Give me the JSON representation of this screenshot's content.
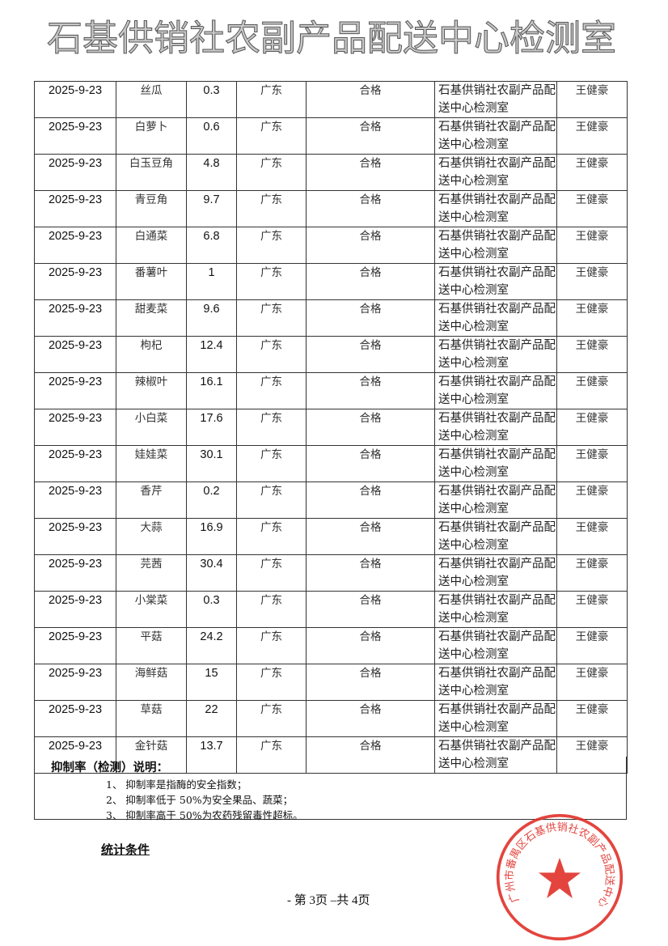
{
  "rows": [
    {
      "date": "2025-9-23",
      "name": "丝瓜",
      "rate": "0.3",
      "origin": "广东",
      "result": "合格",
      "lab": "石基供销社农副产品配送中心检测室",
      "inspector": "王健豪"
    },
    {
      "date": "2025-9-23",
      "name": "白萝卜",
      "rate": "0.6",
      "origin": "广东",
      "result": "合格",
      "lab": "石基供销社农副产品配送中心检测室",
      "inspector": "王健豪"
    },
    {
      "date": "2025-9-23",
      "name": "白玉豆角",
      "rate": "4.8",
      "origin": "广东",
      "result": "合格",
      "lab": "石基供销社农副产品配送中心检测室",
      "inspector": "王健豪"
    },
    {
      "date": "2025-9-23",
      "name": "青豆角",
      "rate": "9.7",
      "origin": "广东",
      "result": "合格",
      "lab": "石基供销社农副产品配送中心检测室",
      "inspector": "王健豪"
    },
    {
      "date": "2025-9-23",
      "name": "白通菜",
      "rate": "6.8",
      "origin": "广东",
      "result": "合格",
      "lab": "石基供销社农副产品配送中心检测室",
      "inspector": "王健豪"
    },
    {
      "date": "2025-9-23",
      "name": "番薯叶",
      "rate": "1",
      "origin": "广东",
      "result": "合格",
      "lab": "石基供销社农副产品配送中心检测室",
      "inspector": "王健豪"
    },
    {
      "date": "2025-9-23",
      "name": "甜麦菜",
      "rate": "9.6",
      "origin": "广东",
      "result": "合格",
      "lab": "石基供销社农副产品配送中心检测室",
      "inspector": "王健豪"
    },
    {
      "date": "2025-9-23",
      "name": "枸杞",
      "rate": "12.4",
      "origin": "广东",
      "result": "合格",
      "lab": "石基供销社农副产品配送中心检测室",
      "inspector": "王健豪"
    },
    {
      "date": "2025-9-23",
      "name": "辣椒叶",
      "rate": "16.1",
      "origin": "广东",
      "result": "合格",
      "lab": "石基供销社农副产品配送中心检测室",
      "inspector": "王健豪"
    },
    {
      "date": "2025-9-23",
      "name": "小白菜",
      "rate": "17.6",
      "origin": "广东",
      "result": "合格",
      "lab": "石基供销社农副产品配送中心检测室",
      "inspector": "王健豪"
    },
    {
      "date": "2025-9-23",
      "name": "娃娃菜",
      "rate": "30.1",
      "origin": "广东",
      "result": "合格",
      "lab": "石基供销社农副产品配送中心检测室",
      "inspector": "王健豪"
    },
    {
      "date": "2025-9-23",
      "name": "香芹",
      "rate": "0.2",
      "origin": "广东",
      "result": "合格",
      "lab": "石基供销社农副产品配送中心检测室",
      "inspector": "王健豪"
    },
    {
      "date": "2025-9-23",
      "name": "大蒜",
      "rate": "16.9",
      "origin": "广东",
      "result": "合格",
      "lab": "石基供销社农副产品配送中心检测室",
      "inspector": "王健豪"
    },
    {
      "date": "2025-9-23",
      "name": "芫茜",
      "rate": "30.4",
      "origin": "广东",
      "result": "合格",
      "lab": "石基供销社农副产品配送中心检测室",
      "inspector": "王健豪"
    },
    {
      "date": "2025-9-23",
      "name": "小棠菜",
      "rate": "0.3",
      "origin": "广东",
      "result": "合格",
      "lab": "石基供销社农副产品配送中心检测室",
      "inspector": "王健豪"
    },
    {
      "date": "2025-9-23",
      "name": "平菇",
      "rate": "24.2",
      "origin": "广东",
      "result": "合格",
      "lab": "石基供销社农副产品配送中心检测室",
      "inspector": "王健豪"
    },
    {
      "date": "2025-9-23",
      "name": "海鲜菇",
      "rate": "15",
      "origin": "广东",
      "result": "合格",
      "lab": "石基供销社农副产品配送中心检测室",
      "inspector": "王健豪"
    },
    {
      "date": "2025-9-23",
      "name": "草菇",
      "rate": "22",
      "origin": "广东",
      "result": "合格",
      "lab": "石基供销社农副产品配送中心检测室",
      "inspector": "王健豪"
    },
    {
      "date": "2025-9-23",
      "name": "金针菇",
      "rate": "13.7",
      "origin": "广东",
      "result": "合格",
      "lab": "石基供销社农副产品配送中心检测室",
      "inspector": "王健豪"
    }
  ],
  "notes": {
    "title": "抑制率（检测）说明：",
    "items": [
      "1、 抑制率是指酶的安全指数；",
      "2、 抑制率低于 50%为安全果品、蔬菜；",
      "3、 抑制率高于 50%为农药残留毒性超标。"
    ]
  },
  "section_title": "统计条件",
  "footer": "- 第 3页 –共 4页",
  "watermark": "石基供销社农副产品配送中心检测室",
  "stamp": {
    "text": "广州市番禺区石基供销社农副产品配送中心",
    "color": "#e0312a"
  }
}
